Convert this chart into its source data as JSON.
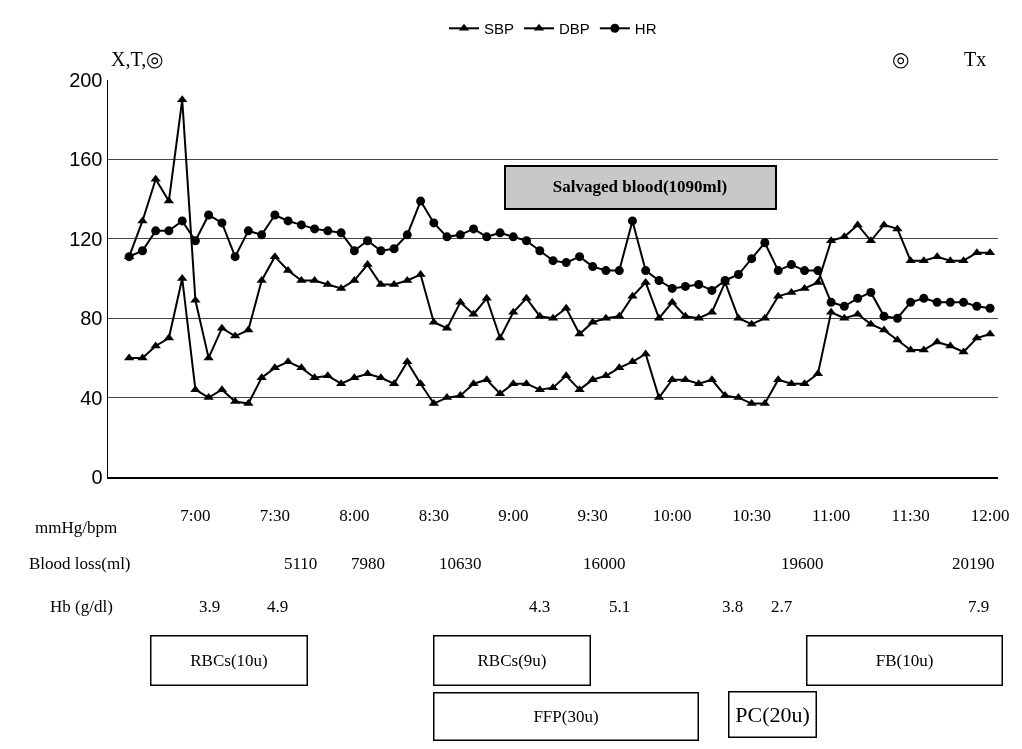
{
  "chart_data": {
    "type": "line",
    "ylabel": "mmHg/bpm",
    "grid": "y",
    "legend": "top",
    "xlim": [
      6.45,
      12.05
    ],
    "xticks": [
      {
        "value": 7,
        "label": "7:00"
      },
      {
        "value": 7.5,
        "label": "7:30"
      },
      {
        "value": 8,
        "label": "8:00"
      },
      {
        "value": 8.5,
        "label": "8:30"
      },
      {
        "value": 9,
        "label": "9:00"
      },
      {
        "value": 9.5,
        "label": "9:30"
      },
      {
        "value": 10,
        "label": "10:00"
      },
      {
        "value": 10.5,
        "label": "10:30"
      },
      {
        "value": 11,
        "label": "11:00"
      },
      {
        "value": 11.5,
        "label": "11:30"
      },
      {
        "value": 12,
        "label": "12:00"
      }
    ],
    "ylim": [
      0,
      200
    ],
    "yticks": [
      0,
      40,
      80,
      120,
      160,
      200
    ],
    "x": [
      6.583,
      6.667,
      6.75,
      6.833,
      6.917,
      7,
      7.083,
      7.167,
      7.25,
      7.333,
      7.417,
      7.5,
      7.583,
      7.667,
      7.75,
      7.833,
      7.917,
      8,
      8.083,
      8.167,
      8.25,
      8.333,
      8.417,
      8.5,
      8.583,
      8.667,
      8.75,
      8.833,
      8.917,
      9,
      9.083,
      9.167,
      9.25,
      9.333,
      9.417,
      9.5,
      9.583,
      9.667,
      9.75,
      9.833,
      9.917,
      10,
      10.083,
      10.167,
      10.25,
      10.333,
      10.417,
      10.5,
      10.583,
      10.667,
      10.75,
      10.833,
      10.917,
      11,
      11.083,
      11.167,
      11.25,
      11.333,
      11.417,
      11.5,
      11.583,
      11.667,
      11.75,
      11.833,
      11.917,
      12
    ],
    "series": [
      {
        "name": "SBP",
        "color": "#000000",
        "marker": "triangle",
        "values": [
          111,
          129,
          150,
          139,
          190,
          89,
          60,
          75,
          71,
          74,
          99,
          111,
          104,
          99,
          99,
          97,
          95,
          99,
          107,
          97,
          97,
          99,
          102,
          78,
          75,
          88,
          82,
          90,
          70,
          83,
          90,
          81,
          80,
          85,
          72,
          78,
          80,
          81,
          91,
          98,
          80,
          88,
          81,
          80,
          83,
          98,
          80,
          77,
          80,
          91,
          93,
          95,
          98,
          119,
          121,
          127,
          119,
          127,
          125,
          109,
          109,
          111,
          109,
          109,
          113,
          113
        ]
      },
      {
        "name": "DBP",
        "color": "#000000",
        "marker": "triangle",
        "values": [
          60,
          60,
          66,
          70,
          100,
          44,
          40,
          44,
          38,
          37,
          50,
          55,
          58,
          55,
          50,
          51,
          47,
          50,
          52,
          50,
          47,
          58,
          47,
          37,
          40,
          41,
          47,
          49,
          42,
          47,
          47,
          44,
          45,
          51,
          44,
          49,
          51,
          55,
          58,
          62,
          40,
          49,
          49,
          47,
          49,
          41,
          40,
          37,
          37,
          49,
          47,
          47,
          52,
          83,
          80,
          82,
          77,
          74,
          69,
          64,
          64,
          68,
          66,
          63,
          70,
          72
        ]
      },
      {
        "name": "HR",
        "color": "#000000",
        "marker": "circle",
        "values": [
          111,
          114,
          124,
          124,
          129,
          119,
          132,
          128,
          111,
          124,
          122,
          132,
          129,
          127,
          125,
          124,
          123,
          114,
          119,
          114,
          115,
          122,
          139,
          128,
          121,
          122,
          125,
          121,
          123,
          121,
          119,
          114,
          109,
          108,
          111,
          106,
          104,
          104,
          129,
          104,
          99,
          95,
          96,
          97,
          94,
          99,
          102,
          110,
          118,
          104,
          107,
          104,
          104,
          88,
          86,
          90,
          93,
          81,
          80,
          88,
          90,
          88,
          88,
          88,
          86,
          85
        ]
      }
    ],
    "annotations": [
      "X,T,◎",
      "◎",
      "Tx",
      "Salvaged blood(1090ml)",
      "Blood loss(ml)",
      "5110",
      "7980",
      "10630",
      "16000",
      "19600",
      "20190",
      "Hb (g/dl)",
      "3.9",
      "4.9",
      "4.3",
      "5.1",
      "3.8",
      "2.7",
      "7.9",
      "RBCs(10u)",
      "RBCs(9u)",
      "FB(10u)",
      "FFP(30u)",
      "PC(20u)"
    ]
  }
}
